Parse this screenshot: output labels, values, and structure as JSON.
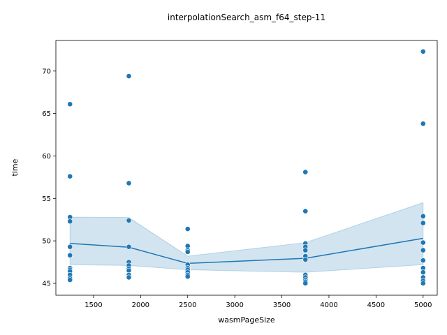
{
  "chart_data": {
    "type": "scatter",
    "title": "interpolationSearch_asm_f64_step-11",
    "xlabel": "wasmPageSize",
    "ylabel": "time",
    "xlim": [
      1100,
      5150
    ],
    "ylim": [
      43.6,
      73.6
    ],
    "x_ticks": [
      1500,
      2000,
      2500,
      3000,
      3500,
      4000,
      4500,
      5000
    ],
    "y_ticks": [
      45,
      50,
      55,
      60,
      65,
      70
    ],
    "grid": false,
    "legend": "none",
    "colors": {
      "points": "#1f77b4",
      "line": "#1f77b4",
      "band": "#1f77b4"
    },
    "points": [
      {
        "x": 1250,
        "y": 66.1
      },
      {
        "x": 1250,
        "y": 57.6
      },
      {
        "x": 1250,
        "y": 52.8
      },
      {
        "x": 1250,
        "y": 52.3
      },
      {
        "x": 1250,
        "y": 49.3
      },
      {
        "x": 1250,
        "y": 48.3
      },
      {
        "x": 1250,
        "y": 46.8
      },
      {
        "x": 1250,
        "y": 46.6
      },
      {
        "x": 1250,
        "y": 46.4
      },
      {
        "x": 1250,
        "y": 46.0
      },
      {
        "x": 1250,
        "y": 45.6
      },
      {
        "x": 1250,
        "y": 45.4
      },
      {
        "x": 1875,
        "y": 69.4
      },
      {
        "x": 1875,
        "y": 56.8
      },
      {
        "x": 1875,
        "y": 52.4
      },
      {
        "x": 1875,
        "y": 49.3
      },
      {
        "x": 1875,
        "y": 47.5
      },
      {
        "x": 1875,
        "y": 47.1
      },
      {
        "x": 1875,
        "y": 46.7
      },
      {
        "x": 1875,
        "y": 46.5
      },
      {
        "x": 1875,
        "y": 46.0
      },
      {
        "x": 1875,
        "y": 45.7
      },
      {
        "x": 2500,
        "y": 51.4
      },
      {
        "x": 2500,
        "y": 49.4
      },
      {
        "x": 2500,
        "y": 48.9
      },
      {
        "x": 2500,
        "y": 48.7
      },
      {
        "x": 2500,
        "y": 47.2
      },
      {
        "x": 2500,
        "y": 46.8
      },
      {
        "x": 2500,
        "y": 46.6
      },
      {
        "x": 2500,
        "y": 46.3
      },
      {
        "x": 2500,
        "y": 46.0
      },
      {
        "x": 2500,
        "y": 45.8
      },
      {
        "x": 3750,
        "y": 58.1
      },
      {
        "x": 3750,
        "y": 53.5
      },
      {
        "x": 3750,
        "y": 49.7
      },
      {
        "x": 3750,
        "y": 49.3
      },
      {
        "x": 3750,
        "y": 48.9
      },
      {
        "x": 3750,
        "y": 48.2
      },
      {
        "x": 3750,
        "y": 47.8
      },
      {
        "x": 3750,
        "y": 46.0
      },
      {
        "x": 3750,
        "y": 45.7
      },
      {
        "x": 3750,
        "y": 45.4
      },
      {
        "x": 3750,
        "y": 45.2
      },
      {
        "x": 3750,
        "y": 45.0
      },
      {
        "x": 5000,
        "y": 72.3
      },
      {
        "x": 5000,
        "y": 63.8
      },
      {
        "x": 5000,
        "y": 52.9
      },
      {
        "x": 5000,
        "y": 52.1
      },
      {
        "x": 5000,
        "y": 49.8
      },
      {
        "x": 5000,
        "y": 48.9
      },
      {
        "x": 5000,
        "y": 47.7
      },
      {
        "x": 5000,
        "y": 46.8
      },
      {
        "x": 5000,
        "y": 46.3
      },
      {
        "x": 5000,
        "y": 45.7
      },
      {
        "x": 5000,
        "y": 45.3
      },
      {
        "x": 5000,
        "y": 45.0
      }
    ],
    "mean_line": {
      "x": [
        1250,
        1875,
        2500,
        3750,
        5000
      ],
      "y": [
        49.7,
        49.25,
        47.35,
        47.95,
        50.3
      ]
    },
    "ci_band": {
      "x": [
        1250,
        1875,
        2500,
        3750,
        5000
      ],
      "lower": [
        47.2,
        47.1,
        46.6,
        46.3,
        47.2
      ],
      "upper": [
        52.8,
        52.75,
        48.2,
        49.8,
        54.5
      ]
    }
  }
}
